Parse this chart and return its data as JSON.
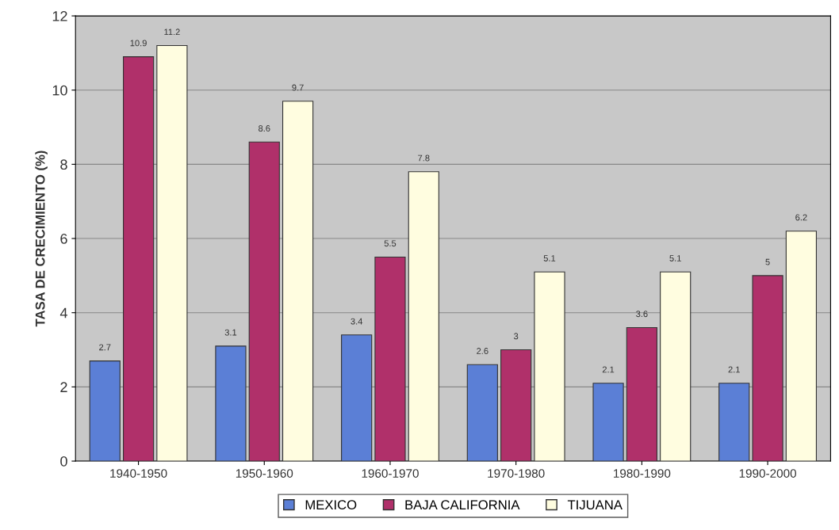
{
  "chart_data": {
    "type": "bar",
    "ylabel": "TASA DE CRECIMIENTO (%)",
    "categories": [
      "1940-1950",
      "1950-1960",
      "1960-1970",
      "1970-1980",
      "1980-1990",
      "1990-2000"
    ],
    "series": [
      {
        "name": "MEXICO",
        "color": "#5b7fd6",
        "values": [
          2.7,
          3.1,
          3.4,
          2.6,
          2.1,
          2.1
        ]
      },
      {
        "name": "BAJA CALIFORNIA",
        "color": "#b0306a",
        "values": [
          10.9,
          8.6,
          5.5,
          3,
          3.6,
          5
        ]
      },
      {
        "name": "TIJUANA",
        "color": "#fffde0",
        "values": [
          11.2,
          9.7,
          7.8,
          5.1,
          5.1,
          6.2
        ]
      }
    ],
    "ylim": [
      0,
      12
    ],
    "yticks": [
      0,
      2,
      4,
      6,
      8,
      10,
      12
    ],
    "grid": "y",
    "legend": "bottom",
    "data_labels": true
  }
}
